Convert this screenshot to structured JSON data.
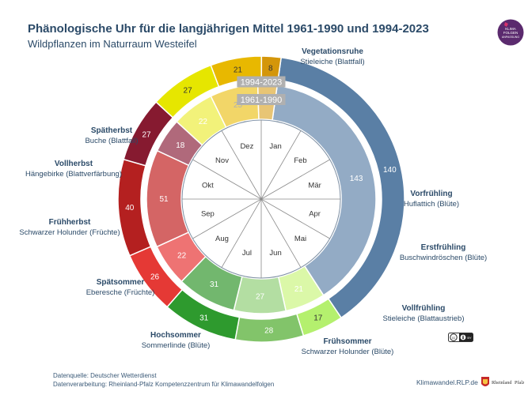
{
  "header": {
    "title": "Phänologische Uhr für die langjährigen Mittel 1961-1990 und 1994-2023",
    "subtitle": "Wildpflanzen im Naturraum Westeifel",
    "logo_text": [
      "KLIMA",
      "FOLGEN",
      "ANPASSUNG"
    ]
  },
  "footer": {
    "source_line1": "Datenquelle: Deutscher Wetterdienst",
    "source_line2": "Datenverarbeitung: Rheinland-Pfalz Kompetenzzentrum für Klimawandelfolgen",
    "website": "Klimawandel.RLP.de",
    "rlp_logo_text": "Rheinland-Pfalz",
    "cc_text": "cc by"
  },
  "chart_data": {
    "type": "pie",
    "start_angle_deg": 8,
    "months": [
      "Jan",
      "Feb",
      "Mär",
      "Apr",
      "Mai",
      "Jun",
      "Jul",
      "Aug",
      "Sep",
      "Okt",
      "Nov",
      "Dez"
    ],
    "series": [
      {
        "name": "1994-2023",
        "ring": "outer",
        "values": [
          140,
          17,
          28,
          31,
          26,
          40,
          27,
          27,
          21,
          8
        ],
        "colors": [
          "#5a7fa5",
          "#b4f06e",
          "#82c46a",
          "#2e9a2e",
          "#e53935",
          "#b42020",
          "#861a30",
          "#e6e600",
          "#e8b800",
          "#d4960a"
        ]
      },
      {
        "name": "1961-1990",
        "ring": "inner",
        "values": [
          143,
          21,
          27,
          31,
          22,
          51,
          18,
          22,
          25,
          10
        ],
        "colors": [
          "#93abc5",
          "#dbf8a8",
          "#b3dea2",
          "#72b76e",
          "#ee7373",
          "#d46565",
          "#b0697b",
          "#f2f27a",
          "#f2d668",
          "#e8c575"
        ],
        "label_colors": [
          "#ffffff",
          "#ffffff",
          "#ffffff",
          "#ffffff",
          "#ffffff",
          "#ffffff",
          "#ffffff",
          "#ffffff",
          "#b0b0b0",
          "#c8a25a"
        ]
      }
    ],
    "phases": [
      {
        "name": "Vegetationsruhe",
        "plant": "Stieleiche (Blattfall)"
      },
      {
        "name": "Vorfrühling",
        "plant": "Huflattich (Blüte)"
      },
      {
        "name": "Erstfrühling",
        "plant": "Buschwindröschen (Blüte)"
      },
      {
        "name": "Vollfrühling",
        "plant": "Stieleiche (Blattaustrieb)"
      },
      {
        "name": "Frühsommer",
        "plant": "Schwarzer Holunder (Blüte)"
      },
      {
        "name": "Hochsommer",
        "plant": "Sommerlinde (Blüte)"
      },
      {
        "name": "Spätsommer",
        "plant": "Eberesche (Früchte)"
      },
      {
        "name": "Frühherbst",
        "plant": "Schwarzer Holunder (Früchte)"
      },
      {
        "name": "Vollherbst",
        "plant": "Hängebirke (Blattverfärbung)"
      },
      {
        "name": "Spätherbst",
        "plant": "Buche (Blattfall)"
      }
    ],
    "ring_labels": {
      "outer": "1994-2023",
      "inner": "1961-1990"
    }
  }
}
